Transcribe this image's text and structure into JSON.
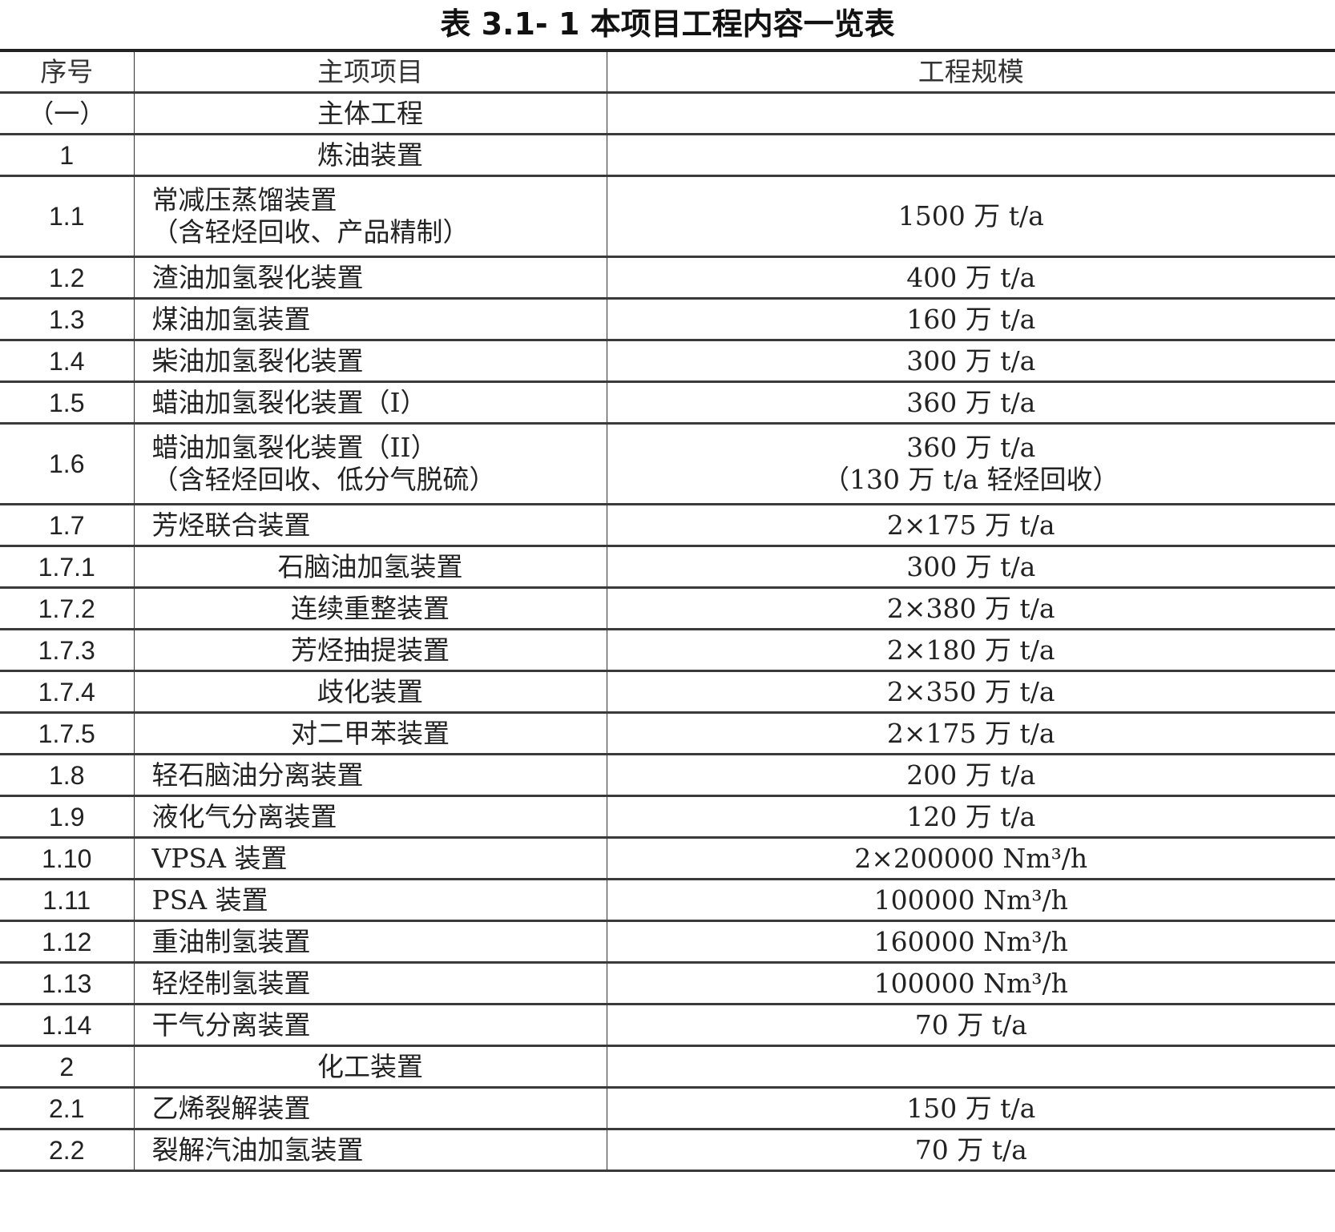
{
  "title": "表 3.1- 1 本项目工程内容一览表",
  "columns": [
    "序号",
    "主项项目",
    "工程规模"
  ],
  "rows": [
    {
      "no": "（一）",
      "name": [
        "主体工程"
      ],
      "scale": [],
      "kind": "section"
    },
    {
      "no": "1",
      "name": [
        "炼油装置"
      ],
      "scale": [],
      "kind": "section"
    },
    {
      "no": "1.1",
      "name": [
        "常减压蒸馏装置",
        "（含轻烃回收、产品精制）"
      ],
      "scale": [
        "1500 万 t/a"
      ],
      "kind": "item"
    },
    {
      "no": "1.2",
      "name": [
        "渣油加氢裂化装置"
      ],
      "scale": [
        "400 万 t/a"
      ],
      "kind": "item"
    },
    {
      "no": "1.3",
      "name": [
        "煤油加氢装置"
      ],
      "scale": [
        "160 万 t/a"
      ],
      "kind": "item"
    },
    {
      "no": "1.4",
      "name": [
        "柴油加氢裂化装置"
      ],
      "scale": [
        "300 万 t/a"
      ],
      "kind": "item"
    },
    {
      "no": "1.5",
      "name": [
        "蜡油加氢裂化装置（I）"
      ],
      "scale": [
        "360 万 t/a"
      ],
      "kind": "item"
    },
    {
      "no": "1.6",
      "name": [
        "蜡油加氢裂化装置（II）",
        "（含轻烃回收、低分气脱硫）"
      ],
      "scale": [
        "360 万 t/a",
        "（130 万 t/a 轻烃回收）"
      ],
      "kind": "item"
    },
    {
      "no": "1.7",
      "name": [
        "芳烃联合装置"
      ],
      "scale": [
        "2×175 万 t/a"
      ],
      "kind": "item"
    },
    {
      "no": "1.7.1",
      "name": [
        "石脑油加氢装置"
      ],
      "scale": [
        "300 万 t/a"
      ],
      "kind": "sub"
    },
    {
      "no": "1.7.2",
      "name": [
        "连续重整装置"
      ],
      "scale": [
        "2×380 万 t/a"
      ],
      "kind": "sub"
    },
    {
      "no": "1.7.3",
      "name": [
        "芳烃抽提装置"
      ],
      "scale": [
        "2×180 万 t/a"
      ],
      "kind": "sub"
    },
    {
      "no": "1.7.4",
      "name": [
        "歧化装置"
      ],
      "scale": [
        "2×350 万 t/a"
      ],
      "kind": "sub"
    },
    {
      "no": "1.7.5",
      "name": [
        "对二甲苯装置"
      ],
      "scale": [
        "2×175 万 t/a"
      ],
      "kind": "sub"
    },
    {
      "no": "1.8",
      "name": [
        "轻石脑油分离装置"
      ],
      "scale": [
        "200 万 t/a"
      ],
      "kind": "item"
    },
    {
      "no": "1.9",
      "name": [
        "液化气分离装置"
      ],
      "scale": [
        "120 万 t/a"
      ],
      "kind": "item"
    },
    {
      "no": "1.10",
      "name": [
        "VPSA 装置"
      ],
      "scale": [
        "2×200000 Nm³/h"
      ],
      "kind": "item"
    },
    {
      "no": "1.11",
      "name": [
        "PSA 装置"
      ],
      "scale": [
        "100000 Nm³/h"
      ],
      "kind": "item"
    },
    {
      "no": "1.12",
      "name": [
        "重油制氢装置"
      ],
      "scale": [
        "160000 Nm³/h"
      ],
      "kind": "item"
    },
    {
      "no": "1.13",
      "name": [
        "轻烃制氢装置"
      ],
      "scale": [
        "100000 Nm³/h"
      ],
      "kind": "item"
    },
    {
      "no": "1.14",
      "name": [
        "干气分离装置"
      ],
      "scale": [
        "70 万 t/a"
      ],
      "kind": "item"
    },
    {
      "no": "2",
      "name": [
        "化工装置"
      ],
      "scale": [],
      "kind": "section"
    },
    {
      "no": "2.1",
      "name": [
        "乙烯裂解装置"
      ],
      "scale": [
        "150 万 t/a"
      ],
      "kind": "item"
    },
    {
      "no": "2.2",
      "name": [
        "裂解汽油加氢装置"
      ],
      "scale": [
        "70 万 t/a"
      ],
      "kind": "item"
    }
  ]
}
